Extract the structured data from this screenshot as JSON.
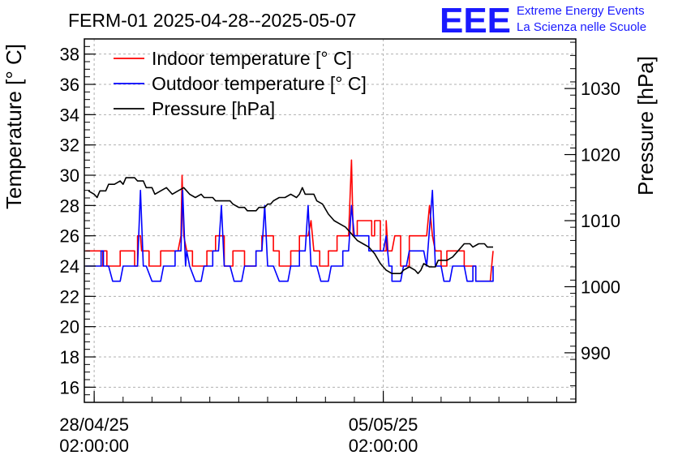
{
  "chart_data": {
    "type": "line",
    "title": "FERM-01 2025-04-28--2025-05-07",
    "ylabel_left": "Temperature [° C]",
    "ylabel_right": "Pressure [hPa]",
    "y_left_range": [
      15,
      39
    ],
    "y_right_range": [
      982.5,
      1037.5
    ],
    "x_range_days": [
      -0.17,
      8.33
    ],
    "y_left_ticks": [
      16,
      18,
      20,
      22,
      24,
      26,
      28,
      30,
      32,
      34,
      36,
      38
    ],
    "y_right_ticks": [
      990,
      1000,
      1010,
      1020,
      1030
    ],
    "x_ticks": [
      {
        "day": 0,
        "date": "28/04/25",
        "time": "02:00:00"
      },
      {
        "day": 5,
        "date": "05/05/25",
        "time": "02:00:00"
      }
    ],
    "grid": true,
    "legend_position": "top-left",
    "series": [
      {
        "name": "Indoor temperature [° C]",
        "color": "#ff0000",
        "axis": "left",
        "points": [
          [
            -0.15,
            25
          ],
          [
            0.12,
            25
          ],
          [
            0.12,
            24
          ],
          [
            0.15,
            24
          ],
          [
            0.15,
            25
          ],
          [
            0.22,
            25
          ],
          [
            0.22,
            24
          ],
          [
            0.45,
            24
          ],
          [
            0.45,
            25
          ],
          [
            0.7,
            25
          ],
          [
            0.7,
            24
          ],
          [
            0.75,
            24
          ],
          [
            0.75,
            26
          ],
          [
            0.8,
            26
          ],
          [
            0.82,
            25
          ],
          [
            0.95,
            25
          ],
          [
            0.95,
            24
          ],
          [
            1.15,
            24
          ],
          [
            1.15,
            25
          ],
          [
            1.45,
            25
          ],
          [
            1.5,
            26
          ],
          [
            1.52,
            30
          ],
          [
            1.55,
            26
          ],
          [
            1.6,
            25
          ],
          [
            1.7,
            25
          ],
          [
            1.7,
            24
          ],
          [
            1.95,
            24
          ],
          [
            1.95,
            25
          ],
          [
            2.1,
            25
          ],
          [
            2.1,
            26
          ],
          [
            2.25,
            26
          ],
          [
            2.25,
            24
          ],
          [
            2.4,
            24
          ],
          [
            2.4,
            25
          ],
          [
            2.6,
            25
          ],
          [
            2.6,
            24
          ],
          [
            2.8,
            24
          ],
          [
            2.8,
            25
          ],
          [
            2.9,
            25
          ],
          [
            2.9,
            26
          ],
          [
            3.1,
            26
          ],
          [
            3.1,
            25
          ],
          [
            3.2,
            25
          ],
          [
            3.2,
            24
          ],
          [
            3.4,
            24
          ],
          [
            3.4,
            25
          ],
          [
            3.55,
            25
          ],
          [
            3.55,
            26
          ],
          [
            3.7,
            26
          ],
          [
            3.75,
            27
          ],
          [
            3.8,
            25
          ],
          [
            3.9,
            25
          ],
          [
            3.9,
            24
          ],
          [
            4.05,
            24
          ],
          [
            4.05,
            25
          ],
          [
            4.2,
            25
          ],
          [
            4.2,
            26
          ],
          [
            4.4,
            26
          ],
          [
            4.45,
            31
          ],
          [
            4.48,
            26
          ],
          [
            4.55,
            26
          ],
          [
            4.55,
            27
          ],
          [
            4.8,
            27
          ],
          [
            4.8,
            26
          ],
          [
            4.85,
            26
          ],
          [
            4.85,
            27
          ],
          [
            4.95,
            27
          ],
          [
            4.95,
            25
          ],
          [
            5.05,
            25
          ],
          [
            5.05,
            27
          ],
          [
            5.08,
            25
          ],
          [
            5.15,
            25
          ],
          [
            5.2,
            26
          ],
          [
            5.3,
            26
          ],
          [
            5.3,
            24
          ],
          [
            5.45,
            24
          ],
          [
            5.45,
            26
          ],
          [
            5.75,
            26
          ],
          [
            5.8,
            28
          ],
          [
            5.85,
            26
          ],
          [
            5.9,
            25
          ],
          [
            6.0,
            25
          ],
          [
            6.0,
            24
          ],
          [
            6.1,
            24
          ],
          [
            6.1,
            25
          ],
          [
            6.4,
            25
          ],
          [
            6.4,
            24
          ],
          [
            6.6,
            24
          ],
          [
            6.6,
            23
          ],
          [
            6.85,
            23
          ],
          [
            6.9,
            25
          ]
        ]
      },
      {
        "name": "Outdoor temperature [° C]",
        "color": "#0000ff",
        "axis": "left",
        "points": [
          [
            -0.15,
            24
          ],
          [
            0.12,
            24
          ],
          [
            0.12,
            25
          ],
          [
            0.16,
            25
          ],
          [
            0.16,
            24
          ],
          [
            0.25,
            24
          ],
          [
            0.32,
            23
          ],
          [
            0.45,
            23
          ],
          [
            0.5,
            24
          ],
          [
            0.75,
            24
          ],
          [
            0.8,
            29
          ],
          [
            0.85,
            24
          ],
          [
            0.9,
            24
          ],
          [
            1.0,
            23
          ],
          [
            1.15,
            23
          ],
          [
            1.2,
            24
          ],
          [
            1.4,
            24
          ],
          [
            1.4,
            25
          ],
          [
            1.5,
            25
          ],
          [
            1.53,
            29
          ],
          [
            1.58,
            24
          ],
          [
            1.6,
            25
          ],
          [
            1.65,
            24
          ],
          [
            1.75,
            23
          ],
          [
            1.85,
            23
          ],
          [
            1.9,
            24
          ],
          [
            2.05,
            24
          ],
          [
            2.05,
            25
          ],
          [
            2.15,
            25
          ],
          [
            2.2,
            28
          ],
          [
            2.25,
            24
          ],
          [
            2.35,
            24
          ],
          [
            2.42,
            23
          ],
          [
            2.55,
            23
          ],
          [
            2.6,
            24
          ],
          [
            2.8,
            24
          ],
          [
            2.8,
            25
          ],
          [
            2.9,
            25
          ],
          [
            2.95,
            28
          ],
          [
            3.0,
            24
          ],
          [
            3.1,
            24
          ],
          [
            3.2,
            23
          ],
          [
            3.35,
            23
          ],
          [
            3.4,
            24
          ],
          [
            3.55,
            24
          ],
          [
            3.55,
            25
          ],
          [
            3.65,
            25
          ],
          [
            3.7,
            28
          ],
          [
            3.75,
            24
          ],
          [
            3.85,
            24
          ],
          [
            3.92,
            23
          ],
          [
            4.05,
            23
          ],
          [
            4.1,
            24
          ],
          [
            4.3,
            24
          ],
          [
            4.3,
            25
          ],
          [
            4.4,
            25
          ],
          [
            4.45,
            28
          ],
          [
            4.5,
            26
          ],
          [
            4.75,
            26
          ],
          [
            4.75,
            25
          ],
          [
            5.0,
            25
          ],
          [
            5.05,
            26
          ],
          [
            5.1,
            24
          ],
          [
            5.15,
            24
          ],
          [
            5.15,
            23
          ],
          [
            5.3,
            23
          ],
          [
            5.35,
            24
          ],
          [
            5.4,
            24
          ],
          [
            5.45,
            25
          ],
          [
            5.7,
            25
          ],
          [
            5.75,
            24
          ],
          [
            5.85,
            29
          ],
          [
            5.9,
            24
          ],
          [
            6.0,
            24
          ],
          [
            6.05,
            23
          ],
          [
            6.15,
            23
          ],
          [
            6.2,
            24
          ],
          [
            6.4,
            24
          ],
          [
            6.45,
            23
          ],
          [
            6.55,
            23
          ],
          [
            6.55,
            24
          ],
          [
            6.6,
            24
          ],
          [
            6.6,
            23
          ],
          [
            6.9,
            23
          ],
          [
            6.9,
            24
          ]
        ]
      },
      {
        "name": "Pressure [hPa]",
        "color": "#000000",
        "axis": "right",
        "points": [
          [
            -0.1,
            1014.5
          ],
          [
            0.0,
            1014
          ],
          [
            0.05,
            1013.5
          ],
          [
            0.1,
            1014.5
          ],
          [
            0.2,
            1014.5
          ],
          [
            0.25,
            1015.5
          ],
          [
            0.35,
            1015.5
          ],
          [
            0.45,
            1016
          ],
          [
            0.5,
            1015.5
          ],
          [
            0.55,
            1016.5
          ],
          [
            0.7,
            1016.5
          ],
          [
            0.75,
            1016
          ],
          [
            0.85,
            1016
          ],
          [
            0.9,
            1015
          ],
          [
            1.0,
            1015
          ],
          [
            1.05,
            1014
          ],
          [
            1.15,
            1014.5
          ],
          [
            1.25,
            1015
          ],
          [
            1.35,
            1014
          ],
          [
            1.45,
            1014.5
          ],
          [
            1.55,
            1015
          ],
          [
            1.65,
            1014
          ],
          [
            1.75,
            1013.5
          ],
          [
            1.85,
            1014
          ],
          [
            1.9,
            1013.5
          ],
          [
            2.05,
            1013.5
          ],
          [
            2.1,
            1013
          ],
          [
            2.35,
            1013
          ],
          [
            2.4,
            1012.5
          ],
          [
            2.5,
            1012
          ],
          [
            2.6,
            1012
          ],
          [
            2.65,
            1011.5
          ],
          [
            2.8,
            1011.5
          ],
          [
            2.85,
            1012
          ],
          [
            2.95,
            1012
          ],
          [
            3.0,
            1012.5
          ],
          [
            3.05,
            1012.5
          ],
          [
            3.1,
            1013
          ],
          [
            3.2,
            1013.5
          ],
          [
            3.3,
            1013.5
          ],
          [
            3.4,
            1014
          ],
          [
            3.5,
            1013.5
          ],
          [
            3.55,
            1014
          ],
          [
            3.6,
            1015
          ],
          [
            3.65,
            1014
          ],
          [
            3.8,
            1014
          ],
          [
            3.85,
            1013
          ],
          [
            3.95,
            1012.5
          ],
          [
            4.05,
            1011
          ],
          [
            4.15,
            1010
          ],
          [
            4.25,
            1009.5
          ],
          [
            4.35,
            1009
          ],
          [
            4.45,
            1008
          ],
          [
            4.55,
            1007
          ],
          [
            4.65,
            1006.5
          ],
          [
            4.75,
            1006
          ],
          [
            4.85,
            1005
          ],
          [
            4.95,
            1003.5
          ],
          [
            5.05,
            1002.5
          ],
          [
            5.15,
            1002
          ],
          [
            5.3,
            1002
          ],
          [
            5.35,
            1002.5
          ],
          [
            5.45,
            1003
          ],
          [
            5.55,
            1002.5
          ],
          [
            5.6,
            1002
          ],
          [
            5.65,
            1002.5
          ],
          [
            5.7,
            1003.5
          ],
          [
            5.8,
            1003
          ],
          [
            5.9,
            1003
          ],
          [
            5.95,
            1004
          ],
          [
            6.05,
            1004
          ],
          [
            6.1,
            1004
          ],
          [
            6.2,
            1004.5
          ],
          [
            6.3,
            1005.5
          ],
          [
            6.4,
            1006.5
          ],
          [
            6.5,
            1006.5
          ],
          [
            6.55,
            1006
          ],
          [
            6.65,
            1006.5
          ],
          [
            6.75,
            1006.5
          ],
          [
            6.8,
            1006
          ],
          [
            6.9,
            1006
          ]
        ]
      }
    ]
  },
  "logo": {
    "mark": "EEE",
    "line1": "Extreme Energy Events",
    "line2": "La Scienza nelle Scuole"
  }
}
